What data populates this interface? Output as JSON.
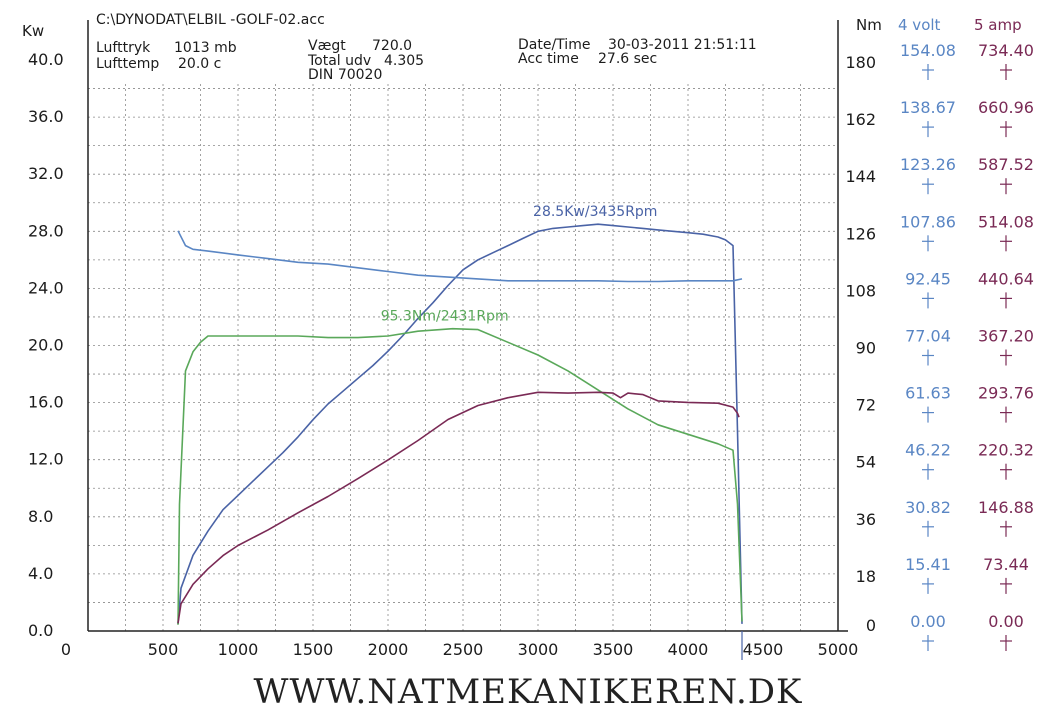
{
  "header": {
    "file": "C:\\DYNODAT\\ELBIL -GOLF-02.acc",
    "lufttryk_label": "Lufttryk",
    "lufttryk_value": "1013 mb",
    "lufttemp_label": "Lufttemp",
    "lufttemp_value": "20.0 c",
    "vaegt_label": "Vægt",
    "vaegt_value": "720.0",
    "total_label": "Total udv",
    "total_value": "4.305",
    "din": "DIN 70020",
    "datetime_label": "Date/Time",
    "datetime_value": "30-03-2011 21:51:11",
    "acc_label": "Acc time",
    "acc_value": "27.6 sec"
  },
  "footer": "WWW.NATMEKANIKEREN.DK",
  "colors": {
    "kw": "#4a63a6",
    "nm": "#5aa85a",
    "volt": "#5a86c4",
    "amp": "#7a2a55",
    "grid": "#8a8a8a",
    "text": "#1c1c1c"
  },
  "chart_data": {
    "type": "line",
    "x_ticks": [
      "0",
      "500",
      "1000",
      "1500",
      "2000",
      "2500",
      "3000",
      "3500",
      "4000",
      "4500",
      "5000"
    ],
    "xlim": [
      0,
      5000
    ],
    "axes": {
      "kw": {
        "label": "Kw",
        "ylim": [
          0,
          40
        ],
        "ticks": [
          "0.0",
          "4.0",
          "8.0",
          "12.0",
          "16.0",
          "20.0",
          "24.0",
          "28.0",
          "32.0",
          "36.0",
          "40.0"
        ]
      },
      "nm": {
        "label": "Nm",
        "ylim": [
          0,
          180
        ],
        "ticks": [
          "0",
          "18",
          "36",
          "54",
          "72",
          "90",
          "108",
          "126",
          "144",
          "162",
          "180"
        ]
      },
      "volt": {
        "label": "4 volt",
        "ylim": [
          0,
          154.08
        ],
        "ticks": [
          "0.00",
          "15.41",
          "30.82",
          "46.22",
          "61.63",
          "77.04",
          "92.45",
          "107.86",
          "123.26",
          "138.67",
          "154.08"
        ]
      },
      "amp": {
        "label": "5 amp",
        "ylim": [
          0,
          734.4
        ],
        "ticks": [
          "0.00",
          "73.44",
          "146.88",
          "220.32",
          "293.76",
          "367.20",
          "440.64",
          "514.08",
          "587.52",
          "660.96",
          "734.40"
        ]
      }
    },
    "annotations": [
      {
        "text": "28.5Kw/3435Rpm",
        "x": 3435,
        "y": 28.5,
        "axis": "kw"
      },
      {
        "text": "95.3Nm/2431Rpm",
        "x": 2431,
        "y": 95.3,
        "axis": "nm"
      }
    ],
    "series": [
      {
        "key": "kw",
        "axis": "kw",
        "x": [
          600,
          620,
          700,
          800,
          900,
          1000,
          1100,
          1200,
          1300,
          1400,
          1500,
          1600,
          1700,
          1800,
          1900,
          2000,
          2100,
          2200,
          2300,
          2400,
          2500,
          2600,
          2700,
          2800,
          2900,
          3000,
          3100,
          3200,
          3300,
          3400,
          3500,
          3600,
          3700,
          3800,
          3900,
          4000,
          4100,
          4200,
          4250,
          4300,
          4330,
          4360
        ],
        "y": [
          0.5,
          3.0,
          5.3,
          7.0,
          8.5,
          9.5,
          10.5,
          11.5,
          12.5,
          13.6,
          14.8,
          15.9,
          16.8,
          17.7,
          18.6,
          19.6,
          20.7,
          21.9,
          23.0,
          24.2,
          25.3,
          26.0,
          26.5,
          27.0,
          27.5,
          28.0,
          28.2,
          28.3,
          28.4,
          28.5,
          28.4,
          28.3,
          28.2,
          28.1,
          28.0,
          27.9,
          27.8,
          27.6,
          27.4,
          27.0,
          14.0,
          0.5
        ]
      },
      {
        "key": "nm",
        "axis": "nm",
        "x": [
          600,
          610,
          650,
          700,
          750,
          800,
          900,
          1000,
          1200,
          1400,
          1600,
          1800,
          2000,
          2200,
          2431,
          2600,
          2800,
          3000,
          3200,
          3400,
          3600,
          3800,
          4000,
          4200,
          4300,
          4330,
          4360
        ],
        "y": [
          2,
          40,
          82,
          88,
          91,
          93,
          93,
          93,
          93,
          93,
          92.5,
          92.5,
          93,
          94.5,
          95.3,
          95,
          91,
          87,
          82,
          76,
          70,
          65,
          62,
          59,
          57,
          40,
          3
        ]
      },
      {
        "key": "volt",
        "axis": "volt",
        "x": [
          600,
          650,
          700,
          800,
          1000,
          1200,
          1400,
          1600,
          1800,
          2000,
          2200,
          2400,
          2600,
          2800,
          3000,
          3200,
          3400,
          3600,
          3800,
          4000,
          4200,
          4300,
          4360
        ],
        "y": [
          108,
          104,
          103,
          102.5,
          101.5,
          100.5,
          99.5,
          99,
          98,
          97,
          96,
          95.5,
          95,
          94.5,
          94.5,
          94.5,
          94.5,
          94.3,
          94.3,
          94.5,
          94.5,
          94.5,
          95
        ]
      },
      {
        "key": "amp",
        "axis": "amp",
        "x": [
          600,
          620,
          700,
          800,
          900,
          1000,
          1200,
          1400,
          1600,
          1800,
          2000,
          2200,
          2400,
          2600,
          2800,
          3000,
          3200,
          3400,
          3500,
          3550,
          3600,
          3700,
          3800,
          4000,
          4200,
          4300,
          4330,
          4340
        ],
        "y": [
          10,
          35,
          60,
          80,
          97,
          110,
          130,
          152,
          173,
          196,
          220,
          245,
          272,
          290,
          300,
          307,
          306,
          307,
          306,
          300,
          306,
          304,
          296,
          294,
          293,
          288,
          280,
          275
        ]
      }
    ],
    "grid": true
  }
}
